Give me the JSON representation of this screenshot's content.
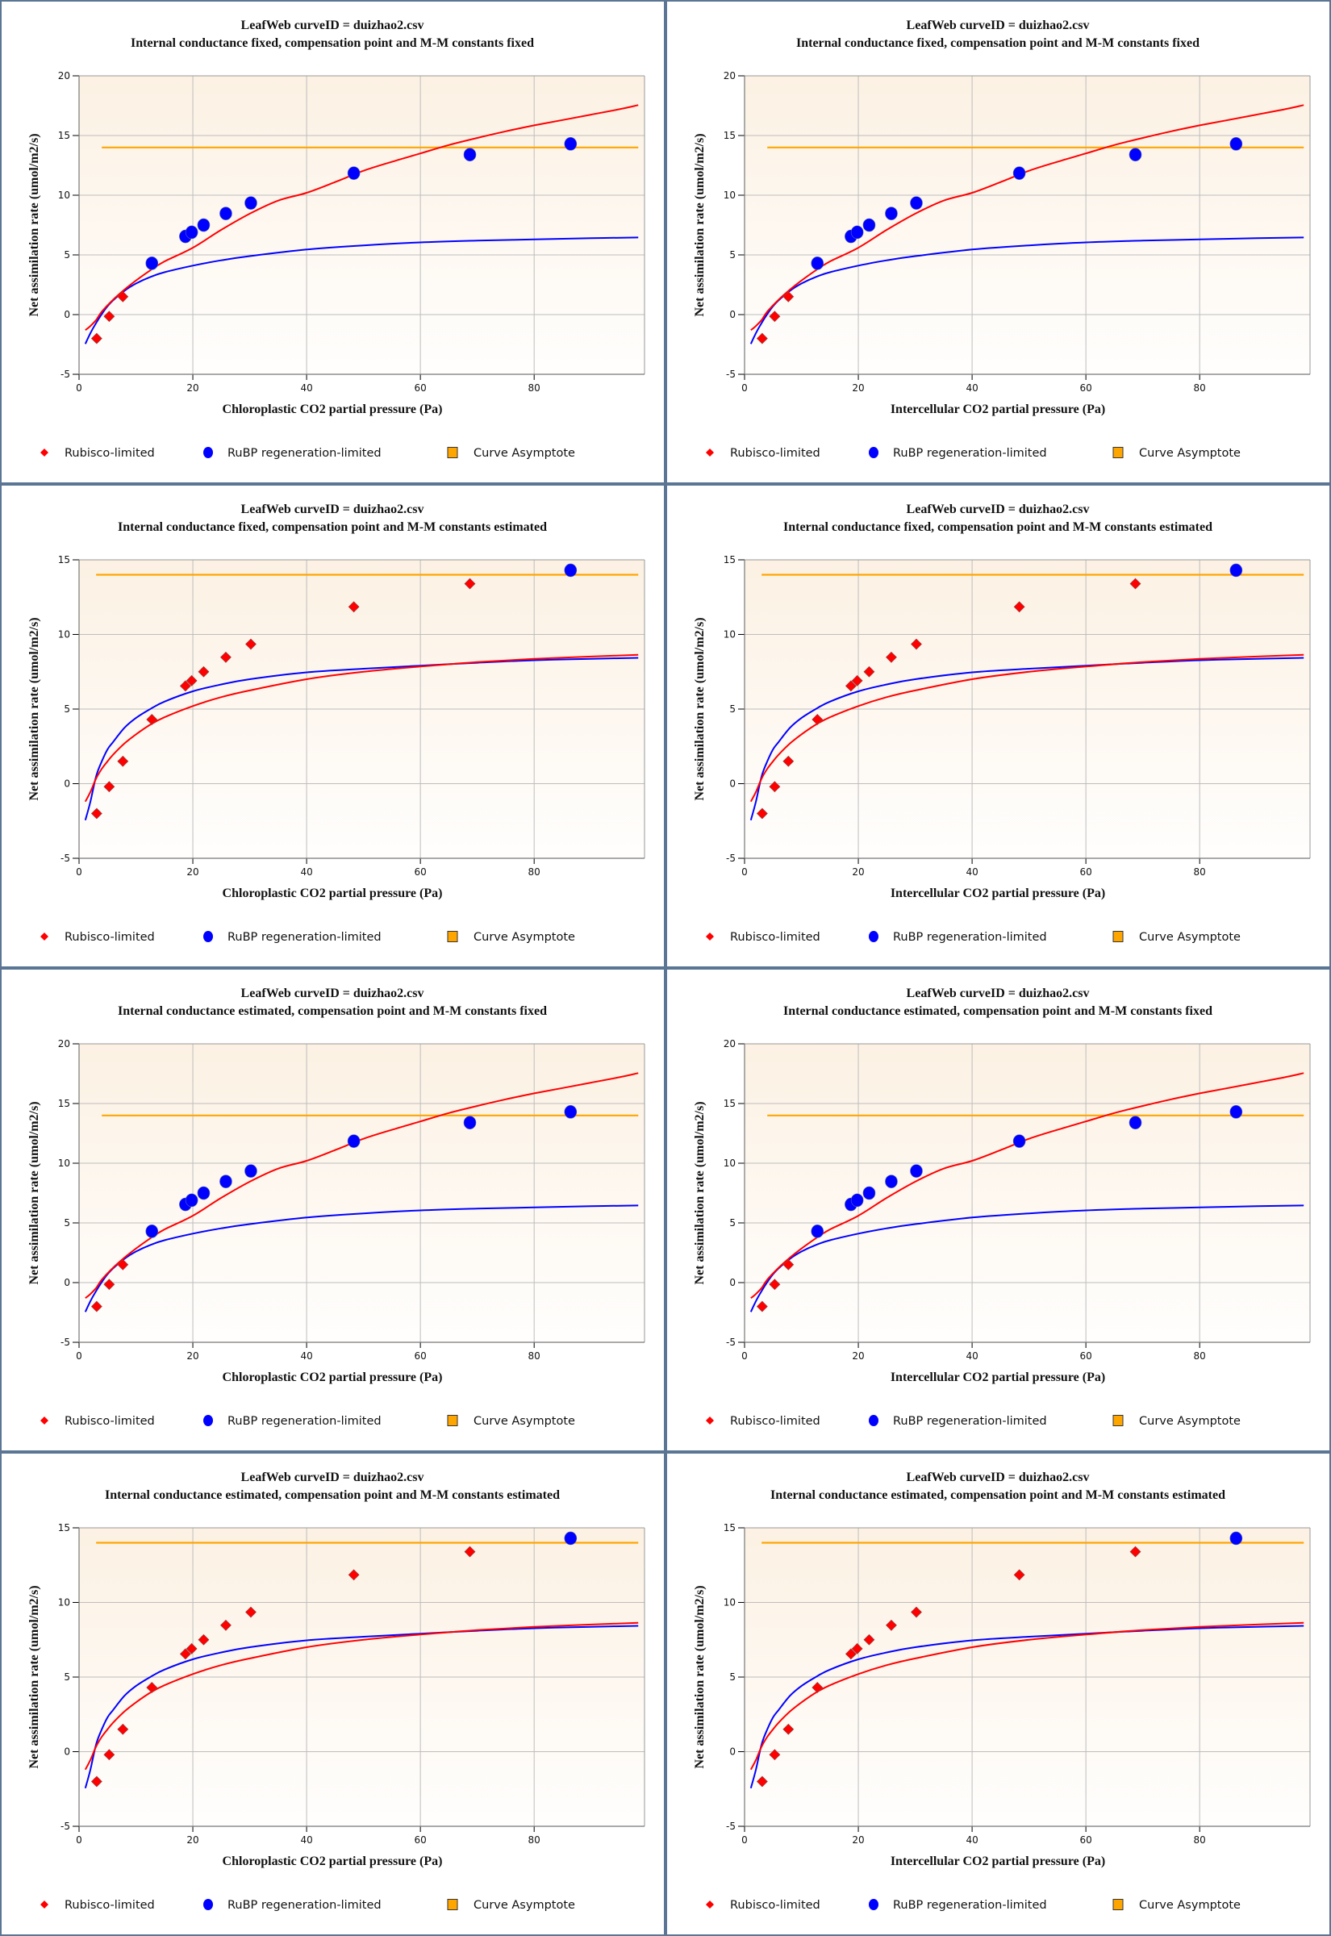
{
  "colors": {
    "border": "#5b7595",
    "rubisco": "#ff0000",
    "rubp": "#0000ff",
    "asymptote": "#ffa500",
    "plot_bg_top": "#fcf1e3",
    "plot_bg_bottom": "#fffefd",
    "grid": "#bdbdbd",
    "axis": "#888888"
  },
  "legend": [
    {
      "label": "Rubisco-limited",
      "marker": "diamond",
      "color": "#ff0000"
    },
    {
      "label": "RuBP regeneration-limited",
      "marker": "circle",
      "color": "#0000ff"
    },
    {
      "label": "Curve Asymptote",
      "marker": "square",
      "color": "#ffa500"
    }
  ],
  "chart_data": [
    {
      "type": "scatter",
      "title": "LeafWeb curveID = duizhao2.csv",
      "subtitle": "Internal conductance fixed, compensation point and M-M constants fixed",
      "xlabel": "Chloroplastic CO2 partial pressure (Pa)",
      "ylabel": "Net assimilation rate (umol/m2/s)",
      "model": "fixed",
      "xlim": [
        0,
        99.4
      ],
      "ylim": [
        -5,
        20
      ],
      "xticks": [
        0,
        20,
        40,
        60,
        80
      ],
      "yticks": [
        -5,
        0,
        5,
        10,
        15,
        20
      ],
      "grid": true,
      "legend": "bottom"
    },
    {
      "type": "scatter",
      "title": "LeafWeb curveID = duizhao2.csv",
      "subtitle": "Internal conductance fixed, compensation point and M-M constants fixed",
      "xlabel": "Intercellular CO2 partial pressure (Pa)",
      "ylabel": "Net assimilation rate (umol/m2/s)",
      "model": "fixed",
      "xlim": [
        0,
        99.4
      ],
      "ylim": [
        -5,
        20
      ],
      "xticks": [
        0,
        20,
        40,
        60,
        80
      ],
      "yticks": [
        -5,
        0,
        5,
        10,
        15,
        20
      ],
      "grid": true,
      "legend": "bottom"
    },
    {
      "type": "scatter",
      "title": "LeafWeb curveID = duizhao2.csv",
      "subtitle": "Internal conductance fixed, compensation point and M-M constants estimated",
      "xlabel": "Chloroplastic CO2 partial pressure (Pa)",
      "ylabel": "Net assimilation rate (umol/m2/s)",
      "model": "estimated",
      "xlim": [
        0,
        99.4
      ],
      "ylim": [
        -5,
        15
      ],
      "xticks": [
        0,
        20,
        40,
        60,
        80
      ],
      "yticks": [
        -5,
        0,
        5,
        10,
        15
      ],
      "grid": true,
      "legend": "bottom"
    },
    {
      "type": "scatter",
      "title": "LeafWeb curveID = duizhao2.csv",
      "subtitle": "Internal conductance fixed, compensation point and M-M constants estimated",
      "xlabel": "Intercellular CO2 partial pressure (Pa)",
      "ylabel": "Net assimilation rate (umol/m2/s)",
      "model": "estimated",
      "xlim": [
        0,
        99.4
      ],
      "ylim": [
        -5,
        15
      ],
      "xticks": [
        0,
        20,
        40,
        60,
        80
      ],
      "yticks": [
        -5,
        0,
        5,
        10,
        15
      ],
      "grid": true,
      "legend": "bottom"
    },
    {
      "type": "scatter",
      "title": "LeafWeb curveID = duizhao2.csv",
      "subtitle": "Internal conductance estimated, compensation point and M-M constants fixed",
      "xlabel": "Chloroplastic CO2 partial pressure (Pa)",
      "ylabel": "Net assimilation rate (umol/m2/s)",
      "model": "fixed",
      "xlim": [
        0,
        99.4
      ],
      "ylim": [
        -5,
        20
      ],
      "xticks": [
        0,
        20,
        40,
        60,
        80
      ],
      "yticks": [
        -5,
        0,
        5,
        10,
        15,
        20
      ],
      "grid": true,
      "legend": "bottom"
    },
    {
      "type": "scatter",
      "title": "LeafWeb curveID = duizhao2.csv",
      "subtitle": "Internal conductance estimated, compensation point and M-M constants fixed",
      "xlabel": "Intercellular CO2 partial pressure (Pa)",
      "ylabel": "Net assimilation rate (umol/m2/s)",
      "model": "fixed",
      "xlim": [
        0,
        99.4
      ],
      "ylim": [
        -5,
        20
      ],
      "xticks": [
        0,
        20,
        40,
        60,
        80
      ],
      "yticks": [
        -5,
        0,
        5,
        10,
        15,
        20
      ],
      "grid": true,
      "legend": "bottom"
    },
    {
      "type": "scatter",
      "title": "LeafWeb curveID = duizhao2.csv",
      "subtitle": "Internal conductance estimated, compensation point and M-M constants estimated",
      "xlabel": "Chloroplastic CO2 partial pressure (Pa)",
      "ylabel": "Net assimilation rate (umol/m2/s)",
      "model": "estimated",
      "xlim": [
        0,
        99.4
      ],
      "ylim": [
        -5,
        15
      ],
      "xticks": [
        0,
        20,
        40,
        60,
        80
      ],
      "yticks": [
        -5,
        0,
        5,
        10,
        15
      ],
      "grid": true,
      "legend": "bottom"
    },
    {
      "type": "scatter",
      "title": "LeafWeb curveID = duizhao2.csv",
      "subtitle": "Internal conductance estimated, compensation point and M-M constants estimated",
      "xlabel": "Intercellular CO2 partial pressure (Pa)",
      "ylabel": "Net assimilation rate (umol/m2/s)",
      "model": "estimated",
      "xlim": [
        0,
        99.4
      ],
      "ylim": [
        -5,
        15
      ],
      "xticks": [
        0,
        20,
        40,
        60,
        80
      ],
      "yticks": [
        -5,
        0,
        5,
        10,
        15
      ],
      "grid": true,
      "legend": "bottom"
    }
  ],
  "models": {
    "fixed": {
      "points": [
        {
          "x": 3.1,
          "y": -2.0,
          "limit": "rubisco"
        },
        {
          "x": 5.3,
          "y": -0.15,
          "limit": "rubisco"
        },
        {
          "x": 7.7,
          "y": 1.5,
          "limit": "rubisco"
        },
        {
          "x": 12.8,
          "y": 4.3,
          "limit": "rubp"
        },
        {
          "x": 18.7,
          "y": 6.55,
          "limit": "rubp"
        },
        {
          "x": 19.8,
          "y": 6.9,
          "limit": "rubp"
        },
        {
          "x": 21.9,
          "y": 7.5,
          "limit": "rubp"
        },
        {
          "x": 25.8,
          "y": 8.47,
          "limit": "rubp"
        },
        {
          "x": 30.2,
          "y": 9.35,
          "limit": "rubp"
        },
        {
          "x": 48.3,
          "y": 11.85,
          "limit": "rubp"
        },
        {
          "x": 68.7,
          "y": 13.4,
          "limit": "rubp"
        },
        {
          "x": 86.4,
          "y": 14.3,
          "limit": "rubp"
        }
      ],
      "rubisco_curve": {
        "name": "Rubisco-limited",
        "x": [
          1.1,
          2,
          3,
          4,
          6,
          8,
          10,
          12.5,
          15,
          20,
          25,
          30,
          35,
          40,
          45,
          50,
          55,
          60,
          65,
          70,
          75,
          80,
          85,
          90,
          95,
          98.3
        ],
        "y": [
          -1.3,
          -0.95,
          -0.45,
          0.25,
          1.25,
          2.1,
          2.85,
          3.7,
          4.45,
          5.6,
          7.1,
          8.45,
          9.55,
          10.2,
          11.1,
          12.05,
          12.8,
          13.5,
          14.2,
          14.8,
          15.35,
          15.85,
          16.3,
          16.75,
          17.2,
          17.55
        ]
      },
      "rubp_curve": {
        "name": "RuBP regeneration-limited",
        "x": [
          1.1,
          2,
          3,
          4,
          5,
          6,
          8,
          10,
          12.5,
          15,
          20,
          25,
          30,
          40,
          50,
          60,
          70,
          80,
          90,
          98.3
        ],
        "y": [
          -2.45,
          -1.55,
          -0.7,
          0.05,
          0.7,
          1.2,
          2.0,
          2.6,
          3.15,
          3.55,
          4.1,
          4.55,
          4.9,
          5.45,
          5.8,
          6.05,
          6.2,
          6.3,
          6.4,
          6.46
        ]
      },
      "asymptote": {
        "y": 14.0,
        "x_from": 4.0,
        "x_to": 98.3
      }
    },
    "estimated": {
      "points": [
        {
          "x": 3.1,
          "y": -2.0,
          "limit": "rubisco"
        },
        {
          "x": 5.3,
          "y": -0.2,
          "limit": "rubisco"
        },
        {
          "x": 7.7,
          "y": 1.5,
          "limit": "rubisco"
        },
        {
          "x": 12.8,
          "y": 4.3,
          "limit": "rubisco"
        },
        {
          "x": 18.7,
          "y": 6.55,
          "limit": "rubisco"
        },
        {
          "x": 19.8,
          "y": 6.9,
          "limit": "rubisco"
        },
        {
          "x": 21.9,
          "y": 7.5,
          "limit": "rubisco"
        },
        {
          "x": 25.8,
          "y": 8.47,
          "limit": "rubisco"
        },
        {
          "x": 30.2,
          "y": 9.35,
          "limit": "rubisco"
        },
        {
          "x": 48.3,
          "y": 11.85,
          "limit": "rubisco"
        },
        {
          "x": 68.7,
          "y": 13.4,
          "limit": "rubisco"
        },
        {
          "x": 86.4,
          "y": 14.3,
          "limit": "rubp"
        }
      ],
      "rubisco_curve": {
        "name": "Rubisco-limited",
        "x": [
          1.1,
          2,
          3,
          4,
          5,
          6,
          8,
          10,
          12.5,
          15,
          20,
          25,
          30,
          40,
          50,
          60,
          70,
          80,
          90,
          98.3
        ],
        "y": [
          -1.2,
          -0.55,
          0.35,
          1.0,
          1.5,
          1.95,
          2.7,
          3.3,
          3.95,
          4.45,
          5.2,
          5.8,
          6.25,
          7.0,
          7.5,
          7.85,
          8.15,
          8.36,
          8.52,
          8.63
        ]
      },
      "rubp_curve": {
        "name": "RuBP regeneration-limited",
        "x": [
          1.1,
          2,
          3,
          4,
          5,
          6,
          8,
          10,
          12.5,
          15,
          20,
          25,
          30,
          40,
          50,
          60,
          70,
          80,
          90,
          98.3
        ],
        "y": [
          -2.45,
          -1.2,
          0.5,
          1.5,
          2.3,
          2.8,
          3.75,
          4.4,
          5.0,
          5.5,
          6.19,
          6.65,
          7.0,
          7.46,
          7.7,
          7.91,
          8.1,
          8.27,
          8.37,
          8.43
        ]
      },
      "asymptote": {
        "y": 14.0,
        "x_from": 3.0,
        "x_to": 98.3
      }
    }
  }
}
